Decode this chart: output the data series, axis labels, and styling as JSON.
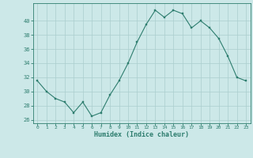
{
  "x": [
    0,
    1,
    2,
    3,
    4,
    5,
    6,
    7,
    8,
    9,
    10,
    11,
    12,
    13,
    14,
    15,
    16,
    17,
    18,
    19,
    20,
    21,
    22,
    23
  ],
  "y": [
    31.5,
    30.0,
    29.0,
    28.5,
    27.0,
    28.5,
    26.5,
    27.0,
    29.5,
    31.5,
    34.0,
    37.0,
    39.5,
    41.5,
    40.5,
    41.5,
    41.0,
    39.0,
    40.0,
    39.0,
    37.5,
    35.0,
    32.0,
    31.5
  ],
  "xlabel": "Humidex (Indice chaleur)",
  "ylim": [
    25.5,
    42.5
  ],
  "xlim": [
    -0.5,
    23.5
  ],
  "yticks": [
    26,
    28,
    30,
    32,
    34,
    36,
    38,
    40
  ],
  "xticks": [
    0,
    1,
    2,
    3,
    4,
    5,
    6,
    7,
    8,
    9,
    10,
    11,
    12,
    13,
    14,
    15,
    16,
    17,
    18,
    19,
    20,
    21,
    22,
    23
  ],
  "line_color": "#2d7d6e",
  "marker_color": "#2d7d6e",
  "bg_color": "#cce8e8",
  "grid_color": "#aacece",
  "tick_label_color": "#2d7d6e",
  "xlabel_color": "#2d7d6e",
  "axis_color": "#2d7d6e"
}
